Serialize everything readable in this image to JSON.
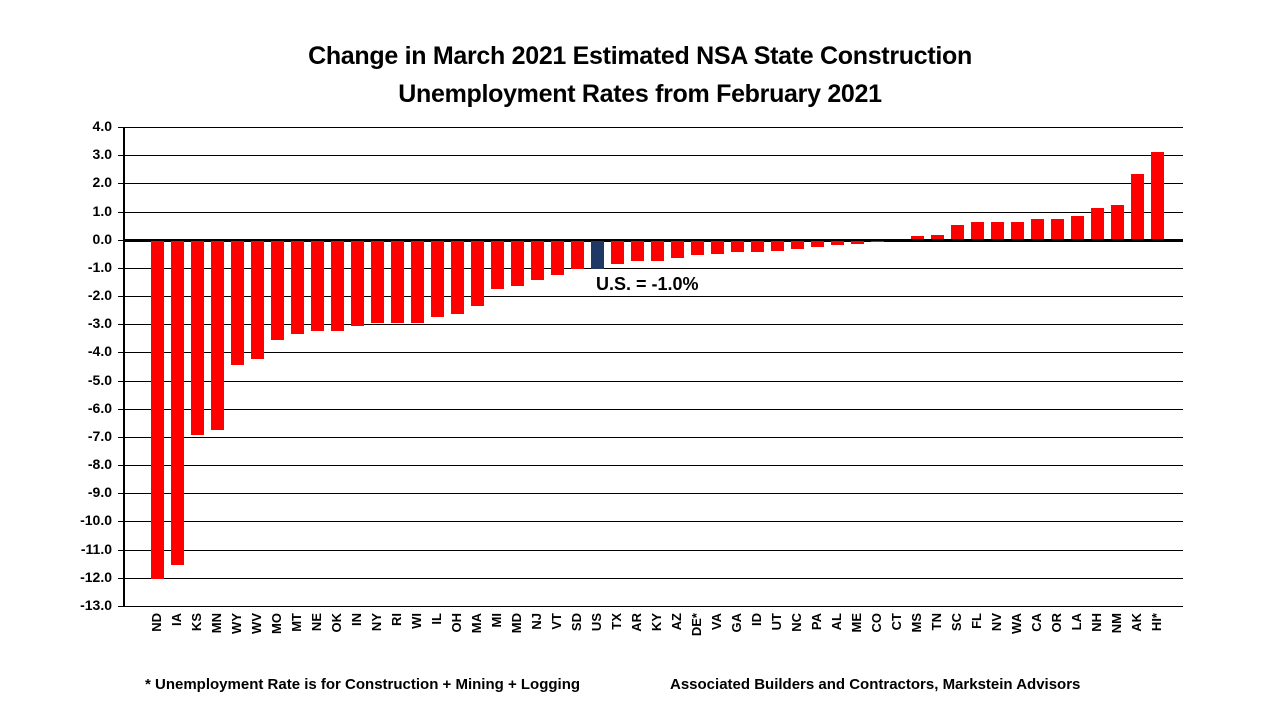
{
  "title": {
    "line1": "Change in March 2021 Estimated NSA State Construction",
    "line2": "Unemployment Rates from February 2021"
  },
  "chart_data": {
    "type": "bar",
    "title": "Change in March 2021 Estimated NSA State Construction Unemployment Rates from February 2021",
    "xlabel": "",
    "ylabel": "",
    "ylim": [
      -13.0,
      4.0
    ],
    "ytick_step": 1.0,
    "ytick_labels": [
      "4.0",
      "3.0",
      "2.0",
      "1.0",
      "0.0",
      "-1.0",
      "-2.0",
      "-3.0",
      "-4.0",
      "-5.0",
      "-6.0",
      "-7.0",
      "-8.0",
      "-9.0",
      "-10.0",
      "-11.0",
      "-12.0",
      "-13.0"
    ],
    "grid": "horizontal black gridlines every 1.0, thick line at 0.0",
    "legend": "none",
    "categories": [
      "ND",
      "IA",
      "KS",
      "MN",
      "WY",
      "WV",
      "MO",
      "MT",
      "NE",
      "OK",
      "IN",
      "NY",
      "RI",
      "WI",
      "IL",
      "OH",
      "MA",
      "MI",
      "MD",
      "NJ",
      "VT",
      "SD",
      "US",
      "TX",
      "AR",
      "KY",
      "AZ",
      "DE*",
      "VA",
      "GA",
      "ID",
      "UT",
      "NC",
      "PA",
      "AL",
      "ME",
      "CO",
      "CT",
      "MS",
      "TN",
      "SC",
      "FL",
      "NV",
      "WA",
      "CA",
      "OR",
      "LA",
      "NH",
      "NM",
      "AK",
      "HI*"
    ],
    "values": [
      -12.0,
      -11.5,
      -6.9,
      -6.7,
      -4.4,
      -4.2,
      -3.5,
      -3.3,
      -3.2,
      -3.2,
      -3.0,
      -2.9,
      -2.9,
      -2.9,
      -2.7,
      -2.6,
      -2.3,
      -1.7,
      -1.6,
      -1.4,
      -1.2,
      -1.0,
      -1.0,
      -0.8,
      -0.7,
      -0.7,
      -0.6,
      -0.5,
      -0.45,
      -0.4,
      -0.4,
      -0.35,
      -0.3,
      -0.2,
      -0.15,
      -0.1,
      -0.05,
      0.0,
      0.1,
      0.15,
      0.5,
      0.6,
      0.6,
      0.6,
      0.7,
      0.7,
      0.8,
      1.1,
      1.2,
      2.3,
      3.1
    ],
    "highlight_category": "US",
    "bar_color": "#ff0000",
    "highlight_color": "#1f3864",
    "annotation": "U.S. = -1.0%"
  },
  "footer": {
    "footnote": "* Unemployment Rate is for Construction + Mining + Logging",
    "source": "Associated Builders and Contractors, Markstein Advisors"
  }
}
